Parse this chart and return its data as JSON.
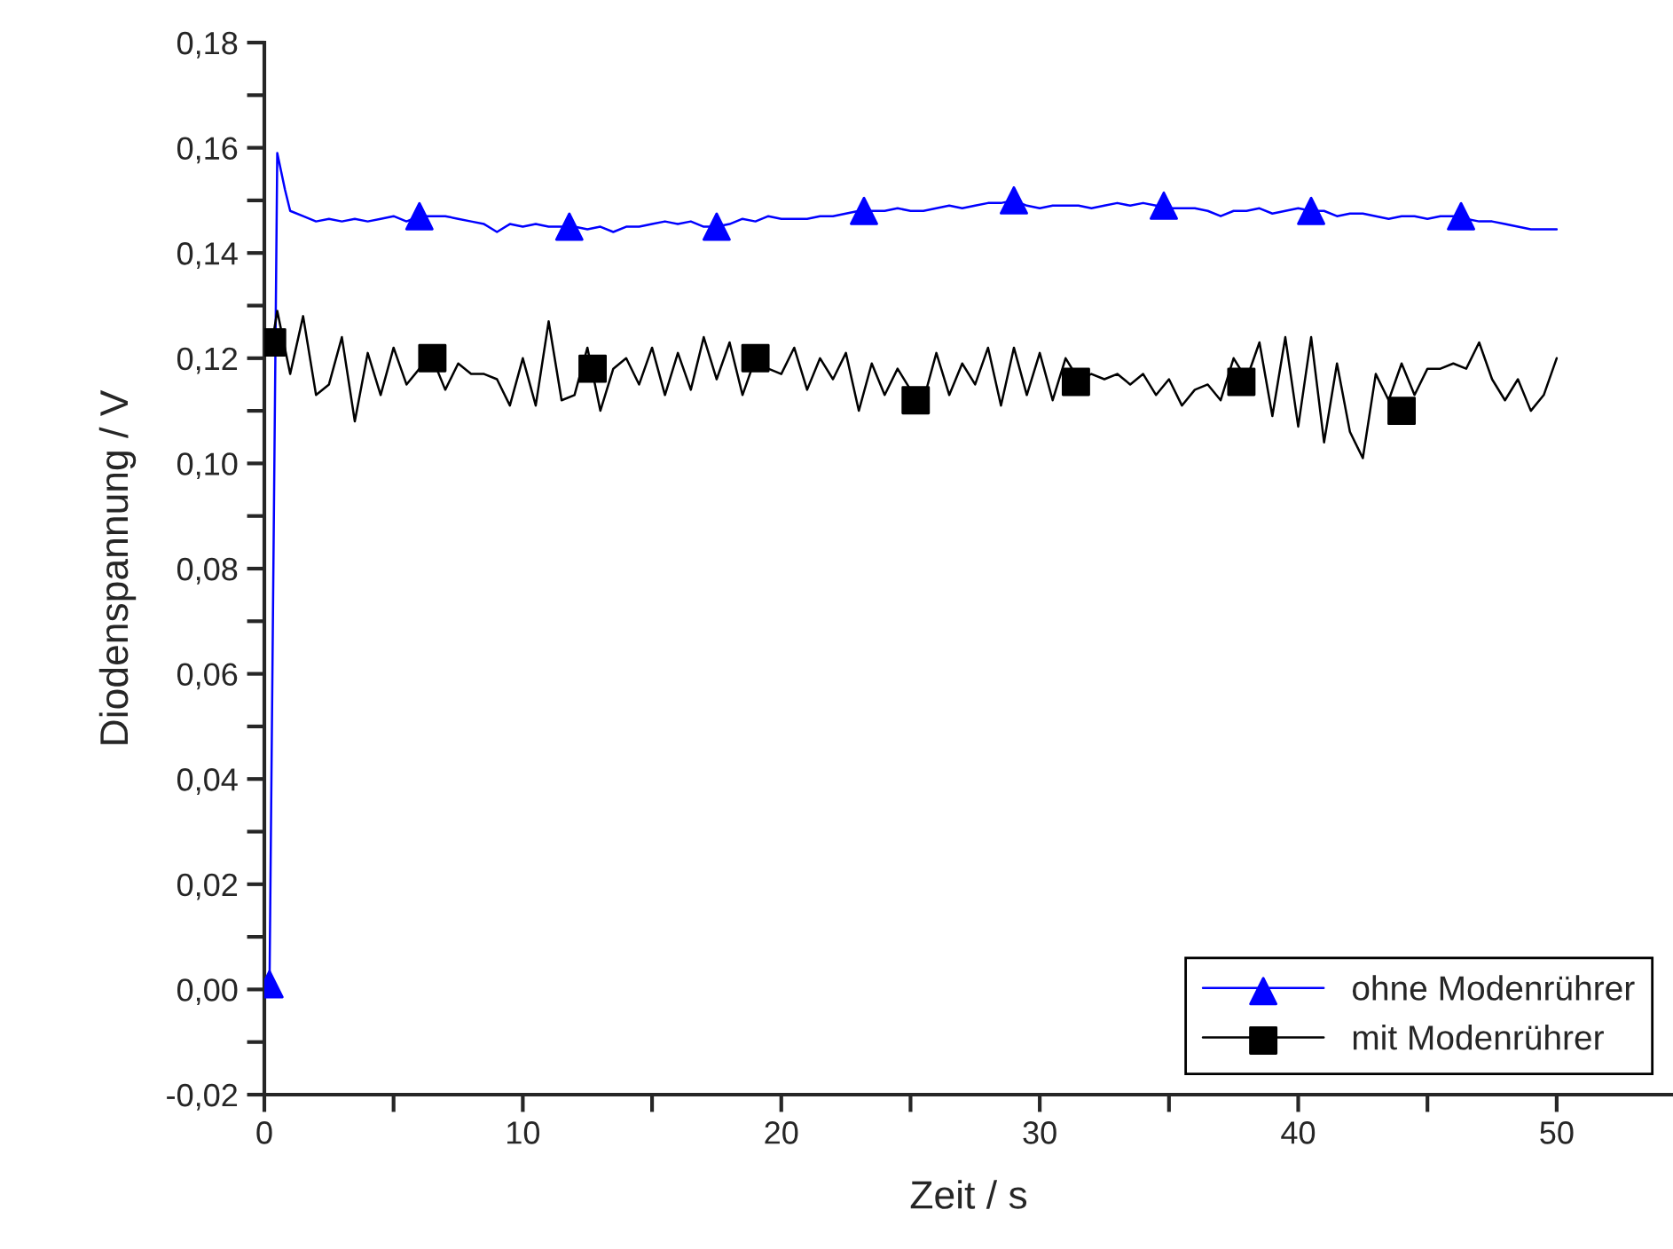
{
  "chart_data": {
    "type": "line",
    "xlabel": "Zeit / s",
    "ylabel": "Diodenspannung / V",
    "xlim": [
      0,
      54.5
    ],
    "ylim": [
      -0.02,
      0.18
    ],
    "xticks": [
      0,
      {
        "value": 5,
        "label": null
      },
      10,
      {
        "value": 15,
        "label": null
      },
      20,
      {
        "value": 25,
        "label": null
      },
      30,
      {
        "value": 35,
        "label": null
      },
      40,
      {
        "value": 45,
        "label": null
      },
      50
    ],
    "yticks": [
      {
        "value": -0.02,
        "label": "-0,02"
      },
      {
        "value": -0.01,
        "label": null
      },
      {
        "value": 0,
        "label": "0,00"
      },
      {
        "value": 0.01,
        "label": null
      },
      {
        "value": 0.02,
        "label": "0,02"
      },
      {
        "value": 0.03,
        "label": null
      },
      {
        "value": 0.04,
        "label": "0,04"
      },
      {
        "value": 0.05,
        "label": null
      },
      {
        "value": 0.06,
        "label": "0,06"
      },
      {
        "value": 0.07,
        "label": null
      },
      {
        "value": 0.08,
        "label": "0,08"
      },
      {
        "value": 0.09,
        "label": null
      },
      {
        "value": 0.1,
        "label": "0,10"
      },
      {
        "value": 0.11,
        "label": null
      },
      {
        "value": 0.12,
        "label": "0,12"
      },
      {
        "value": 0.13,
        "label": null
      },
      {
        "value": 0.14,
        "label": "0,14"
      },
      {
        "value": 0.15,
        "label": null
      },
      {
        "value": 0.16,
        "label": "0,16"
      },
      {
        "value": 0.17,
        "label": null
      },
      {
        "value": 0.18,
        "label": "0,18"
      }
    ],
    "grid": false,
    "legend": "bottom right",
    "series": [
      {
        "name": "ohne Modenrührer",
        "color": "#0000ff",
        "x": [
          0.2,
          0.5,
          0.8,
          1.0,
          1.5,
          2,
          2.5,
          3,
          3.5,
          4,
          4.5,
          5,
          5.5,
          6,
          6.5,
          7,
          7.5,
          8,
          8.5,
          9,
          9.5,
          10,
          10.5,
          11,
          11.5,
          12,
          12.5,
          13,
          13.5,
          14,
          14.5,
          15,
          15.5,
          16,
          16.5,
          17,
          17.5,
          18,
          18.5,
          19,
          19.5,
          20,
          20.5,
          21,
          21.5,
          22,
          22.5,
          23,
          23.5,
          24,
          24.5,
          25,
          25.5,
          26,
          26.5,
          27,
          27.5,
          28,
          28.5,
          29,
          29.5,
          30,
          30.5,
          31,
          31.5,
          32,
          32.5,
          33,
          33.5,
          34,
          34.5,
          35,
          35.5,
          36,
          36.5,
          37,
          37.5,
          38,
          38.5,
          39,
          39.5,
          40,
          40.5,
          41,
          41.5,
          42,
          42.5,
          43,
          43.5,
          44,
          44.5,
          45,
          45.5,
          46,
          46.5,
          47,
          47.5,
          48,
          48.5,
          49,
          49.5,
          50
        ],
        "values": [
          0.001,
          0.159,
          0.152,
          0.148,
          0.147,
          0.146,
          0.1465,
          0.146,
          0.1465,
          0.146,
          0.1465,
          0.147,
          0.146,
          0.147,
          0.147,
          0.147,
          0.1465,
          0.146,
          0.1455,
          0.144,
          0.1455,
          0.145,
          0.1455,
          0.145,
          0.145,
          0.145,
          0.1445,
          0.145,
          0.144,
          0.145,
          0.145,
          0.1455,
          0.146,
          0.1455,
          0.146,
          0.145,
          0.145,
          0.1455,
          0.1465,
          0.146,
          0.147,
          0.1465,
          0.1465,
          0.1465,
          0.147,
          0.147,
          0.1475,
          0.148,
          0.148,
          0.148,
          0.1485,
          0.148,
          0.148,
          0.1485,
          0.149,
          0.1485,
          0.149,
          0.1495,
          0.1495,
          0.15,
          0.149,
          0.1485,
          0.149,
          0.149,
          0.149,
          0.1485,
          0.149,
          0.1495,
          0.149,
          0.1495,
          0.149,
          0.1485,
          0.1485,
          0.1485,
          0.148,
          0.147,
          0.148,
          0.148,
          0.1485,
          0.1475,
          0.148,
          0.1485,
          0.148,
          0.148,
          0.147,
          0.1475,
          0.1475,
          0.147,
          0.1465,
          0.147,
          0.147,
          0.1465,
          0.147,
          0.147,
          0.1465,
          0.146,
          0.146,
          0.1455,
          0.145,
          0.1445,
          0.1445,
          0.1445
        ]
      },
      {
        "type": "scatter",
        "marker": "triangle",
        "color": "#0000ff",
        "x": [
          0.2,
          6,
          11.8,
          17.5,
          23.2,
          29,
          34.8,
          40.5,
          46.3
        ],
        "values": [
          0.001,
          0.147,
          0.145,
          0.145,
          0.148,
          0.15,
          0.149,
          0.148,
          0.147
        ]
      },
      {
        "name": "mit Modenrührer",
        "color": "#000000",
        "x": [
          0.3,
          0.5,
          1.0,
          1.5,
          2,
          2.5,
          3,
          3.5,
          4,
          4.5,
          5,
          5.5,
          6,
          6.5,
          7,
          7.5,
          8,
          8.5,
          9,
          9.5,
          10,
          10.5,
          11,
          11.5,
          12,
          12.5,
          13,
          13.5,
          14,
          14.5,
          15,
          15.5,
          16,
          16.5,
          17,
          17.5,
          18,
          18.5,
          19,
          19.5,
          20,
          20.5,
          21,
          21.5,
          22,
          22.5,
          23,
          23.5,
          24,
          24.5,
          25,
          25.5,
          26,
          26.5,
          27,
          27.5,
          28,
          28.5,
          29,
          29.5,
          30,
          30.5,
          31,
          31.5,
          32,
          32.5,
          33,
          33.5,
          34,
          34.5,
          35,
          35.5,
          36,
          36.5,
          37,
          37.5,
          38,
          38.5,
          39,
          39.5,
          40,
          40.5,
          41,
          41.5,
          42,
          42.5,
          43,
          43.5,
          44,
          44.5,
          45,
          45.5,
          46,
          46.5,
          47,
          47.5,
          48,
          48.5,
          49,
          49.5,
          50
        ],
        "values": [
          0.123,
          0.129,
          0.117,
          0.128,
          0.113,
          0.115,
          0.124,
          0.108,
          0.121,
          0.113,
          0.122,
          0.115,
          0.118,
          0.12,
          0.114,
          0.119,
          0.117,
          0.117,
          0.116,
          0.111,
          0.12,
          0.111,
          0.127,
          0.112,
          0.113,
          0.122,
          0.11,
          0.118,
          0.12,
          0.115,
          0.122,
          0.113,
          0.121,
          0.114,
          0.124,
          0.116,
          0.123,
          0.113,
          0.12,
          0.118,
          0.117,
          0.122,
          0.114,
          0.12,
          0.116,
          0.121,
          0.11,
          0.119,
          0.113,
          0.118,
          0.114,
          0.112,
          0.121,
          0.113,
          0.119,
          0.115,
          0.122,
          0.111,
          0.122,
          0.113,
          0.121,
          0.112,
          0.12,
          0.116,
          0.117,
          0.116,
          0.117,
          0.115,
          0.117,
          0.113,
          0.116,
          0.111,
          0.114,
          0.115,
          0.112,
          0.12,
          0.116,
          0.123,
          0.109,
          0.124,
          0.107,
          0.124,
          0.104,
          0.119,
          0.106,
          0.101,
          0.117,
          0.112,
          0.119,
          0.113,
          0.118,
          0.118,
          0.119,
          0.118,
          0.123,
          0.116,
          0.112,
          0.116,
          0.11,
          0.113,
          0.12
        ]
      },
      {
        "type": "scatter",
        "marker": "square",
        "color": "#000000",
        "x": [
          0.3,
          6.5,
          12.7,
          19,
          25.2,
          31.4,
          37.8,
          44
        ],
        "values": [
          0.123,
          0.12,
          0.118,
          0.12,
          0.112,
          0.1155,
          0.1155,
          0.11
        ]
      }
    ]
  }
}
